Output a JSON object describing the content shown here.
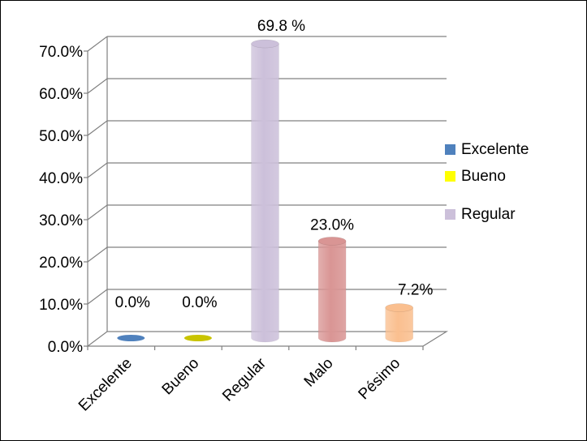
{
  "chart_data": {
    "type": "bar",
    "style": "3d-cylinder",
    "categories": [
      "Excelente",
      "Bueno",
      "Regular",
      "Malo",
      "Pésimo"
    ],
    "values": [
      0.0,
      0.0,
      69.8,
      23.0,
      7.2
    ],
    "data_labels": [
      "0.0%",
      "0.0%",
      "69.8 %",
      "23.0%",
      "7.2%"
    ],
    "y_ticks": [
      "0.0%",
      "10.0%",
      "20.0%",
      "30.0%",
      "40.0%",
      "50.0%",
      "60.0%",
      "70.0%"
    ],
    "ylim": [
      0,
      70
    ],
    "grid": true,
    "legend_position": "right",
    "colors": [
      "#4f81bd",
      "#c9c400",
      "#ccc0da",
      "#d99594",
      "#fabf8f"
    ],
    "legend": [
      {
        "label": "Excelente",
        "color": "#4f81bd"
      },
      {
        "label": "Bueno",
        "color": "#ffff00"
      },
      {
        "label": "Regular",
        "color": "#ccc0da"
      }
    ]
  }
}
